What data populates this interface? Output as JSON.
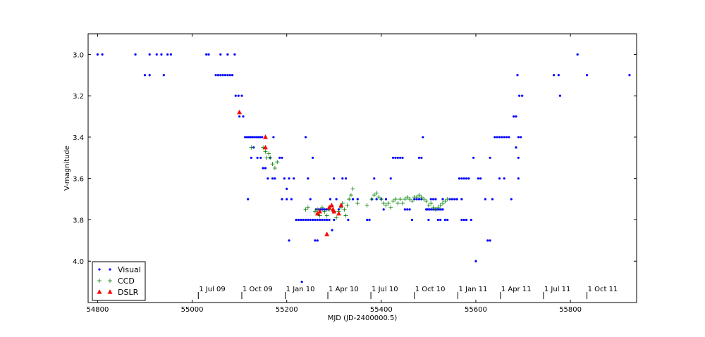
{
  "chart_data": {
    "type": "scatter",
    "xlabel": "MJD (JD-2400000.5)",
    "ylabel": "V-magnitude",
    "xlim": [
      54780,
      55940
    ],
    "ylim": [
      4.2,
      2.9
    ],
    "y_inverted": true,
    "xticks": [
      54800,
      55000,
      55200,
      55400,
      55600,
      55800
    ],
    "yticks": [
      3.0,
      3.2,
      3.4,
      3.6,
      3.8,
      4.0
    ],
    "legend_position": "bottom-left",
    "grid": false,
    "date_ticks": [
      {
        "label": "1 Jul 09",
        "mjd": 55013
      },
      {
        "label": "1 Oct 09",
        "mjd": 55105
      },
      {
        "label": "1 Jan 10",
        "mjd": 55197
      },
      {
        "label": "1 Apr 10",
        "mjd": 55287
      },
      {
        "label": "1 Jul 10",
        "mjd": 55378
      },
      {
        "label": "1 Oct 10",
        "mjd": 55470
      },
      {
        "label": "1 Jan 11",
        "mjd": 55562
      },
      {
        "label": "1 Apr 11",
        "mjd": 55652
      },
      {
        "label": "1 Jul 11",
        "mjd": 55743
      },
      {
        "label": "1 Oct 11",
        "mjd": 55835
      }
    ],
    "series": [
      {
        "name": "Visual",
        "color": "#0000ff",
        "marker": "dot",
        "points": [
          [
            54800,
            3.0
          ],
          [
            54810,
            3.0
          ],
          [
            54880,
            3.0
          ],
          [
            54900,
            3.1
          ],
          [
            54910,
            3.1
          ],
          [
            54910,
            3.0
          ],
          [
            54925,
            3.0
          ],
          [
            54935,
            3.0
          ],
          [
            54940,
            3.1
          ],
          [
            54948,
            3.0
          ],
          [
            54955,
            3.0
          ],
          [
            55030,
            3.0
          ],
          [
            55035,
            3.0
          ],
          [
            55050,
            3.1
          ],
          [
            55055,
            3.1
          ],
          [
            55060,
            3.1
          ],
          [
            55060,
            3.0
          ],
          [
            55065,
            3.1
          ],
          [
            55070,
            3.1
          ],
          [
            55075,
            3.0
          ],
          [
            55075,
            3.1
          ],
          [
            55080,
            3.1
          ],
          [
            55085,
            3.1
          ],
          [
            55090,
            3.0
          ],
          [
            55092,
            3.2
          ],
          [
            55098,
            3.2
          ],
          [
            55100,
            3.3
          ],
          [
            55108,
            3.3
          ],
          [
            55105,
            3.2
          ],
          [
            55112,
            3.4
          ],
          [
            55116,
            3.4
          ],
          [
            55120,
            3.4
          ],
          [
            55124,
            3.4
          ],
          [
            55128,
            3.4
          ],
          [
            55132,
            3.4
          ],
          [
            55136,
            3.4
          ],
          [
            55140,
            3.4
          ],
          [
            55144,
            3.4
          ],
          [
            55148,
            3.4
          ],
          [
            55118,
            3.7
          ],
          [
            55125,
            3.5
          ],
          [
            55130,
            3.45
          ],
          [
            55138,
            3.5
          ],
          [
            55145,
            3.5
          ],
          [
            55150,
            3.55
          ],
          [
            55155,
            3.55
          ],
          [
            55160,
            3.6
          ],
          [
            55165,
            3.5
          ],
          [
            55170,
            3.6
          ],
          [
            55175,
            3.6
          ],
          [
            55172,
            3.4
          ],
          [
            55185,
            3.5
          ],
          [
            55190,
            3.5
          ],
          [
            55190,
            3.7
          ],
          [
            55195,
            3.6
          ],
          [
            55200,
            3.65
          ],
          [
            55205,
            3.6
          ],
          [
            55200,
            3.7
          ],
          [
            55205,
            3.9
          ],
          [
            55210,
            3.7
          ],
          [
            55215,
            3.6
          ],
          [
            55220,
            3.8
          ],
          [
            55225,
            3.8
          ],
          [
            55230,
            3.8
          ],
          [
            55235,
            3.8
          ],
          [
            55240,
            3.8
          ],
          [
            55245,
            3.8
          ],
          [
            55250,
            3.8
          ],
          [
            55255,
            3.8
          ],
          [
            55260,
            3.8
          ],
          [
            55265,
            3.8
          ],
          [
            55270,
            3.8
          ],
          [
            55275,
            3.8
          ],
          [
            55280,
            3.8
          ],
          [
            55285,
            3.8
          ],
          [
            55290,
            3.8
          ],
          [
            55232,
            4.1
          ],
          [
            55240,
            3.4
          ],
          [
            55245,
            3.6
          ],
          [
            55250,
            3.7
          ],
          [
            55255,
            3.5
          ],
          [
            55260,
            3.9
          ],
          [
            55265,
            3.9
          ],
          [
            55262,
            3.75
          ],
          [
            55268,
            3.75
          ],
          [
            55272,
            3.75
          ],
          [
            55276,
            3.75
          ],
          [
            55280,
            3.75
          ],
          [
            55284,
            3.75
          ],
          [
            55288,
            3.75
          ],
          [
            55292,
            3.7
          ],
          [
            55296,
            3.85
          ],
          [
            55300,
            3.8
          ],
          [
            55300,
            3.6
          ],
          [
            55305,
            3.7
          ],
          [
            55310,
            3.75
          ],
          [
            55318,
            3.6
          ],
          [
            55325,
            3.6
          ],
          [
            55330,
            3.8
          ],
          [
            55340,
            3.7
          ],
          [
            55350,
            3.7
          ],
          [
            55370,
            3.8
          ],
          [
            55375,
            3.8
          ],
          [
            55380,
            3.7
          ],
          [
            55385,
            3.6
          ],
          [
            55390,
            3.7
          ],
          [
            55400,
            3.7
          ],
          [
            55405,
            3.75
          ],
          [
            55410,
            3.7
          ],
          [
            55420,
            3.6
          ],
          [
            55425,
            3.5
          ],
          [
            55430,
            3.5
          ],
          [
            55435,
            3.5
          ],
          [
            55440,
            3.5
          ],
          [
            55445,
            3.5
          ],
          [
            55450,
            3.75
          ],
          [
            55455,
            3.75
          ],
          [
            55460,
            3.75
          ],
          [
            55465,
            3.8
          ],
          [
            55470,
            3.7
          ],
          [
            55475,
            3.7
          ],
          [
            55480,
            3.7
          ],
          [
            55485,
            3.7
          ],
          [
            55480,
            3.5
          ],
          [
            55485,
            3.5
          ],
          [
            55488,
            3.4
          ],
          [
            55495,
            3.75
          ],
          [
            55500,
            3.8
          ],
          [
            55505,
            3.7
          ],
          [
            55510,
            3.7
          ],
          [
            55515,
            3.7
          ],
          [
            55520,
            3.8
          ],
          [
            55525,
            3.8
          ],
          [
            55530,
            3.7
          ],
          [
            55535,
            3.8
          ],
          [
            55540,
            3.8
          ],
          [
            55545,
            3.7
          ],
          [
            55550,
            3.7
          ],
          [
            55555,
            3.7
          ],
          [
            55560,
            3.7
          ],
          [
            55570,
            3.7
          ],
          [
            55498,
            3.75
          ],
          [
            55502,
            3.75
          ],
          [
            55506,
            3.75
          ],
          [
            55510,
            3.75
          ],
          [
            55514,
            3.75
          ],
          [
            55518,
            3.75
          ],
          [
            55522,
            3.75
          ],
          [
            55526,
            3.75
          ],
          [
            55530,
            3.75
          ],
          [
            55565,
            3.6
          ],
          [
            55570,
            3.6
          ],
          [
            55575,
            3.6
          ],
          [
            55580,
            3.6
          ],
          [
            55585,
            3.6
          ],
          [
            55570,
            3.8
          ],
          [
            55575,
            3.8
          ],
          [
            55580,
            3.8
          ],
          [
            55590,
            3.8
          ],
          [
            55595,
            3.5
          ],
          [
            55600,
            4.0
          ],
          [
            55605,
            3.6
          ],
          [
            55610,
            3.6
          ],
          [
            55620,
            3.7
          ],
          [
            55625,
            3.9
          ],
          [
            55630,
            3.9
          ],
          [
            55630,
            3.5
          ],
          [
            55635,
            3.7
          ],
          [
            55640,
            3.4
          ],
          [
            55645,
            3.4
          ],
          [
            55650,
            3.4
          ],
          [
            55655,
            3.4
          ],
          [
            55660,
            3.4
          ],
          [
            55665,
            3.4
          ],
          [
            55650,
            3.6
          ],
          [
            55660,
            3.6
          ],
          [
            55670,
            3.4
          ],
          [
            55675,
            3.7
          ],
          [
            55680,
            3.3
          ],
          [
            55685,
            3.3
          ],
          [
            55688,
            3.1
          ],
          [
            55685,
            3.45
          ],
          [
            55690,
            3.4
          ],
          [
            55692,
            3.2
          ],
          [
            55698,
            3.2
          ],
          [
            55690,
            3.5
          ],
          [
            55690,
            3.6
          ],
          [
            55695,
            3.4
          ],
          [
            55765,
            3.1
          ],
          [
            55775,
            3.1
          ],
          [
            55778,
            3.2
          ],
          [
            55815,
            3.0
          ],
          [
            55835,
            3.1
          ],
          [
            55925,
            3.1
          ]
        ]
      },
      {
        "name": "CCD",
        "color": "#008000",
        "marker": "plus",
        "points": [
          [
            55125,
            3.45
          ],
          [
            55150,
            3.45
          ],
          [
            55155,
            3.47
          ],
          [
            55158,
            3.5
          ],
          [
            55162,
            3.48
          ],
          [
            55165,
            3.5
          ],
          [
            55170,
            3.53
          ],
          [
            55175,
            3.55
          ],
          [
            55180,
            3.52
          ],
          [
            55240,
            3.75
          ],
          [
            55245,
            3.74
          ],
          [
            55260,
            3.76
          ],
          [
            55265,
            3.75
          ],
          [
            55270,
            3.78
          ],
          [
            55275,
            3.74
          ],
          [
            55280,
            3.76
          ],
          [
            55285,
            3.78
          ],
          [
            55290,
            3.75
          ],
          [
            55295,
            3.73
          ],
          [
            55300,
            3.76
          ],
          [
            55305,
            3.79
          ],
          [
            55310,
            3.76
          ],
          [
            55315,
            3.74
          ],
          [
            55318,
            3.72
          ],
          [
            55322,
            3.75
          ],
          [
            55325,
            3.78
          ],
          [
            55328,
            3.73
          ],
          [
            55332,
            3.7
          ],
          [
            55336,
            3.68
          ],
          [
            55340,
            3.65
          ],
          [
            55350,
            3.72
          ],
          [
            55370,
            3.73
          ],
          [
            55380,
            3.7
          ],
          [
            55385,
            3.68
          ],
          [
            55390,
            3.67
          ],
          [
            55395,
            3.69
          ],
          [
            55400,
            3.7
          ],
          [
            55405,
            3.72
          ],
          [
            55410,
            3.73
          ],
          [
            55415,
            3.72
          ],
          [
            55420,
            3.74
          ],
          [
            55425,
            3.71
          ],
          [
            55430,
            3.7
          ],
          [
            55435,
            3.72
          ],
          [
            55440,
            3.7
          ],
          [
            55445,
            3.72
          ],
          [
            55450,
            3.7
          ],
          [
            55455,
            3.69
          ],
          [
            55460,
            3.7
          ],
          [
            55465,
            3.71
          ],
          [
            55470,
            3.69
          ],
          [
            55475,
            3.69
          ],
          [
            55480,
            3.68
          ],
          [
            55485,
            3.69
          ],
          [
            55490,
            3.7
          ],
          [
            55495,
            3.71
          ],
          [
            55500,
            3.73
          ],
          [
            55505,
            3.72
          ],
          [
            55510,
            3.74
          ],
          [
            55515,
            3.75
          ],
          [
            55520,
            3.74
          ],
          [
            55525,
            3.73
          ],
          [
            55530,
            3.72
          ],
          [
            55535,
            3.71
          ],
          [
            55540,
            3.7
          ]
        ]
      },
      {
        "name": "DSLR",
        "color": "#ff0000",
        "marker": "triangle",
        "points": [
          [
            55100,
            3.28
          ],
          [
            55155,
            3.4
          ],
          [
            55155,
            3.45
          ],
          [
            55265,
            3.77
          ],
          [
            55270,
            3.76
          ],
          [
            55285,
            3.87
          ],
          [
            55290,
            3.74
          ],
          [
            55295,
            3.73
          ],
          [
            55298,
            3.75
          ],
          [
            55300,
            3.76
          ],
          [
            55310,
            3.77
          ],
          [
            55315,
            3.73
          ]
        ]
      }
    ]
  }
}
